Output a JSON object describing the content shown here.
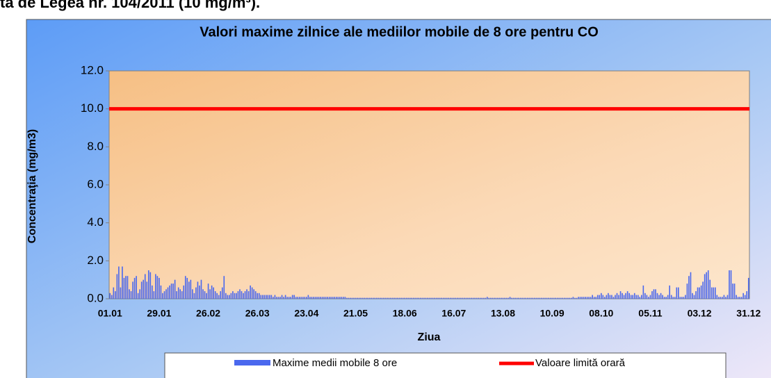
{
  "header_text": "ta de Legea nr. 104/2011 (10 mg/m³).",
  "chart_data": {
    "type": "bar",
    "title": "Valori maxime zilnice ale mediilor mobile de 8 ore pentru CO",
    "x_label": "Ziua",
    "y_label": "Concentraţia (mg/m3)",
    "ylim": [
      0,
      12
    ],
    "yticks": [
      {
        "value": 0,
        "label": "0.0"
      },
      {
        "value": 2,
        "label": "2.0"
      },
      {
        "value": 4,
        "label": "4.0"
      },
      {
        "value": 6,
        "label": "6.0"
      },
      {
        "value": 8,
        "label": "8.0"
      },
      {
        "value": 10,
        "label": "10.0"
      },
      {
        "value": 12,
        "label": "12.0"
      }
    ],
    "limit": {
      "name": "Valoare limită orară",
      "value": 10,
      "color": "#ff0000"
    },
    "legend": "bottom",
    "categories": [
      "01.01",
      null,
      null,
      null,
      null,
      null,
      null,
      null,
      null,
      null,
      null,
      null,
      null,
      null,
      null,
      null,
      null,
      null,
      null,
      null,
      null,
      null,
      null,
      null,
      null,
      null,
      null,
      null,
      "29.01",
      null,
      null,
      null,
      null,
      null,
      null,
      null,
      null,
      null,
      null,
      null,
      null,
      null,
      null,
      null,
      null,
      null,
      null,
      null,
      null,
      null,
      null,
      null,
      null,
      null,
      null,
      null,
      "26.02",
      null,
      null,
      null,
      null,
      null,
      null,
      null,
      null,
      null,
      null,
      null,
      null,
      null,
      null,
      null,
      null,
      null,
      null,
      null,
      null,
      null,
      null,
      null,
      null,
      null,
      null,
      null,
      "26.03",
      null,
      null,
      null,
      null,
      null,
      null,
      null,
      null,
      null,
      null,
      null,
      null,
      null,
      null,
      null,
      null,
      null,
      null,
      null,
      null,
      null,
      null,
      null,
      null,
      null,
      null,
      null,
      "23.04",
      null,
      null,
      null,
      null,
      null,
      null,
      null,
      null,
      null,
      null,
      null,
      null,
      null,
      null,
      null,
      null,
      null,
      null,
      null,
      null,
      null,
      null,
      null,
      null,
      null,
      null,
      null,
      "21.05",
      null,
      null,
      null,
      null,
      null,
      null,
      null,
      null,
      null,
      null,
      null,
      null,
      null,
      null,
      null,
      null,
      null,
      null,
      null,
      null,
      null,
      null,
      null,
      null,
      null,
      null,
      null,
      "18.06",
      null,
      null,
      null,
      null,
      null,
      null,
      null,
      null,
      null,
      null,
      null,
      null,
      null,
      null,
      null,
      null,
      null,
      null,
      null,
      null,
      null,
      null,
      null,
      null,
      null,
      null,
      null,
      "16.07",
      null,
      null,
      null,
      null,
      null,
      null,
      null,
      null,
      null,
      null,
      null,
      null,
      null,
      null,
      null,
      null,
      null,
      null,
      null,
      null,
      null,
      null,
      null,
      null,
      null,
      null,
      null,
      "13.08",
      null,
      null,
      null,
      null,
      null,
      null,
      null,
      null,
      null,
      null,
      null,
      null,
      null,
      null,
      null,
      null,
      null,
      null,
      null,
      null,
      null,
      null,
      null,
      null,
      null,
      null,
      null,
      "10.09",
      null,
      null,
      null,
      null,
      null,
      null,
      null,
      null,
      null,
      null,
      null,
      null,
      null,
      null,
      null,
      null,
      null,
      null,
      null,
      null,
      null,
      null,
      null,
      null,
      null,
      null,
      null,
      "08.10",
      null,
      null,
      null,
      null,
      null,
      null,
      null,
      null,
      null,
      null,
      null,
      null,
      null,
      null,
      null,
      null,
      null,
      null,
      null,
      null,
      null,
      null,
      null,
      null,
      null,
      null,
      null,
      "05.11",
      null,
      null,
      null,
      null,
      null,
      null,
      null,
      null,
      null,
      null,
      null,
      null,
      null,
      null,
      null,
      null,
      null,
      null,
      null,
      null,
      null,
      null,
      null,
      null,
      null,
      null,
      null,
      "03.12",
      null,
      null,
      null,
      null,
      null,
      null,
      null,
      null,
      null,
      null,
      null,
      null,
      null,
      null,
      null,
      null,
      null,
      null,
      null,
      null,
      null,
      null,
      null,
      null,
      null,
      null,
      null,
      "31.12"
    ],
    "series": [
      {
        "name": "Maxime medii mobile 8 ore",
        "color": "#4a68ee",
        "values": [
          0.3,
          0.2,
          0.6,
          0.4,
          1.3,
          1.7,
          0.6,
          1.7,
          1.1,
          1.2,
          1.2,
          0.5,
          0.4,
          0.9,
          1.1,
          1.2,
          0.3,
          0.5,
          0.9,
          1.0,
          1.3,
          0.9,
          1.5,
          1.4,
          0.7,
          0.4,
          1.3,
          1.2,
          1.1,
          0.7,
          0.3,
          0.4,
          0.5,
          0.6,
          0.7,
          0.8,
          0.8,
          1.0,
          0.4,
          0.6,
          0.5,
          0.4,
          0.7,
          1.2,
          1.1,
          0.9,
          1.0,
          0.5,
          0.3,
          0.6,
          0.9,
          0.7,
          1.0,
          0.5,
          0.4,
          0.3,
          0.8,
          0.5,
          0.7,
          0.6,
          0.4,
          0.3,
          0.2,
          0.4,
          0.6,
          1.2,
          0.3,
          0.2,
          0.2,
          0.3,
          0.4,
          0.3,
          0.3,
          0.4,
          0.5,
          0.4,
          0.3,
          0.4,
          0.5,
          0.4,
          0.7,
          0.6,
          0.5,
          0.4,
          0.3,
          0.3,
          0.2,
          0.2,
          0.2,
          0.2,
          0.2,
          0.2,
          0.2,
          0.1,
          0.2,
          0.1,
          0.1,
          0.1,
          0.2,
          0.1,
          0.2,
          0.1,
          0.1,
          0.1,
          0.2,
          0.2,
          0.1,
          0.1,
          0.1,
          0.1,
          0.1,
          0.1,
          0.1,
          0.2,
          0.1,
          0.1,
          0.1,
          0.1,
          0.1,
          0.1,
          0.1,
          0.1,
          0.1,
          0.1,
          0.1,
          0.1,
          0.1,
          0.1,
          0.1,
          0.1,
          0.1,
          0.1,
          0.1,
          0.1,
          0.1,
          0.05,
          0.05,
          0.05,
          0.05,
          0.05,
          0.05,
          0.05,
          0.05,
          0.05,
          0.05,
          0.05,
          0.05,
          0.05,
          0.05,
          0.05,
          0.05,
          0.05,
          0.05,
          0.05,
          0.05,
          0.05,
          0.05,
          0.05,
          0.05,
          0.05,
          0.05,
          0.05,
          0.05,
          0.05,
          0.05,
          0.05,
          0.05,
          0.05,
          0.05,
          0.05,
          0.05,
          0.05,
          0.05,
          0.05,
          0.05,
          0.05,
          0.05,
          0.05,
          0.05,
          0.05,
          0.05,
          0.05,
          0.05,
          0.05,
          0.05,
          0.05,
          0.05,
          0.05,
          0.05,
          0.05,
          0.05,
          0.05,
          0.05,
          0.05,
          0.05,
          0.05,
          0.05,
          0.05,
          0.05,
          0.05,
          0.05,
          0.05,
          0.05,
          0.05,
          0.05,
          0.05,
          0.05,
          0.05,
          0.05,
          0.05,
          0.05,
          0.05,
          0.05,
          0.05,
          0.05,
          0.1,
          0.05,
          0.05,
          0.05,
          0.05,
          0.05,
          0.05,
          0.05,
          0.05,
          0.05,
          0.05,
          0.05,
          0.05,
          0.1,
          0.05,
          0.05,
          0.05,
          0.05,
          0.05,
          0.05,
          0.05,
          0.05,
          0.05,
          0.05,
          0.05,
          0.05,
          0.05,
          0.05,
          0.05,
          0.05,
          0.05,
          0.05,
          0.05,
          0.05,
          0.05,
          0.05,
          0.05,
          0.05,
          0.05,
          0.05,
          0.05,
          0.05,
          0.05,
          0.05,
          0.05,
          0.05,
          0.05,
          0.05,
          0.05,
          0.1,
          0.05,
          0.05,
          0.1,
          0.1,
          0.1,
          0.1,
          0.1,
          0.1,
          0.1,
          0.1,
          0.2,
          0.1,
          0.1,
          0.2,
          0.2,
          0.3,
          0.2,
          0.1,
          0.2,
          0.3,
          0.2,
          0.2,
          0.1,
          0.2,
          0.3,
          0.2,
          0.4,
          0.3,
          0.2,
          0.3,
          0.4,
          0.3,
          0.2,
          0.2,
          0.3,
          0.2,
          0.2,
          0.1,
          0.2,
          0.7,
          0.3,
          0.2,
          0.1,
          0.2,
          0.4,
          0.5,
          0.5,
          0.3,
          0.2,
          0.3,
          0.2,
          0.1,
          0.1,
          0.2,
          0.7,
          0.2,
          0.1,
          0.1,
          0.6,
          0.6,
          0.1,
          0.1,
          0.1,
          0.2,
          0.8,
          1.2,
          1.4,
          0.3,
          0.2,
          0.4,
          0.6,
          0.6,
          0.7,
          0.9,
          1.3,
          1.4,
          1.5,
          1.0,
          0.6,
          0.6,
          0.6,
          0.2,
          0.1,
          0.1,
          0.1,
          0.2,
          0.1,
          0.2,
          1.5,
          1.5,
          0.8,
          0.8,
          0.2,
          0.1,
          0.1,
          0.1,
          0.3,
          0.2,
          0.4,
          1.1
        ]
      }
    ]
  }
}
